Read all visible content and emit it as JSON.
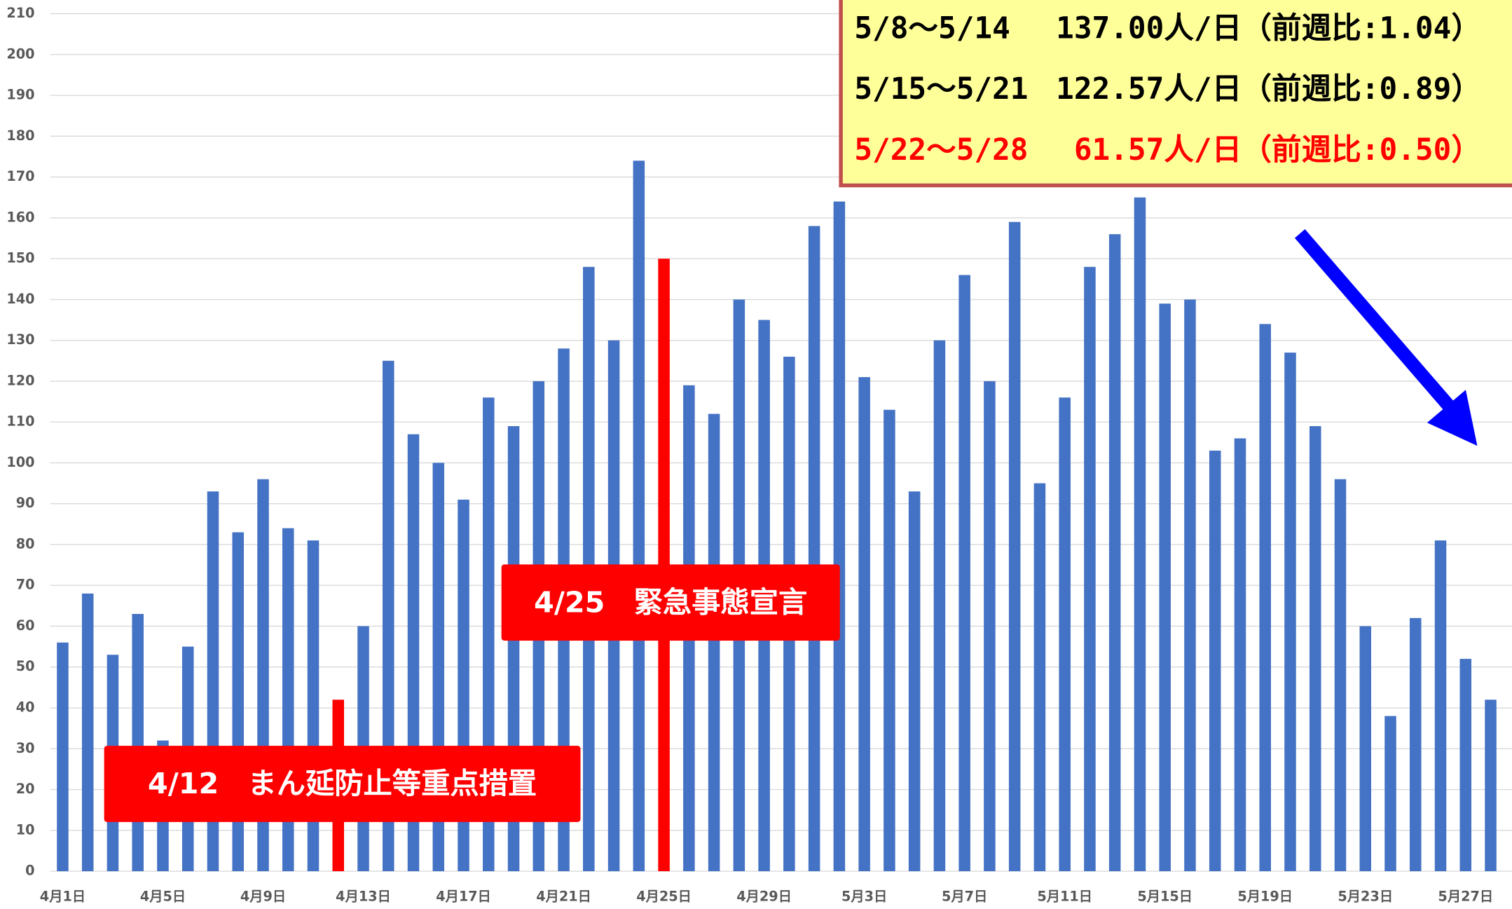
{
  "chart_data": {
    "type": "bar",
    "categories": [
      "4月1日",
      null,
      null,
      null,
      "4月5日",
      null,
      null,
      null,
      "4月9日",
      null,
      null,
      null,
      "4月13日",
      null,
      null,
      null,
      "4月17日",
      null,
      null,
      null,
      "4月21日",
      null,
      null,
      null,
      "4月25日",
      null,
      null,
      null,
      "4月29日",
      null,
      null,
      null,
      "5月3日",
      null,
      null,
      null,
      "5月7日",
      null,
      null,
      null,
      "5月11日",
      null,
      null,
      null,
      "5月15日",
      null,
      null,
      null,
      "5月19日",
      null,
      null,
      null,
      "5月23日",
      null,
      null,
      null,
      "5月27日",
      null
    ],
    "values": [
      56,
      68,
      53,
      63,
      32,
      55,
      93,
      83,
      96,
      84,
      81,
      42,
      60,
      125,
      107,
      100,
      91,
      116,
      109,
      120,
      128,
      148,
      130,
      174,
      150,
      119,
      112,
      140,
      135,
      126,
      158,
      164,
      121,
      113,
      93,
      130,
      146,
      120,
      159,
      95,
      116,
      148,
      156,
      165,
      139,
      140,
      103,
      106,
      134,
      127,
      109,
      96,
      60,
      38,
      62,
      81,
      52,
      42
    ],
    "color": "#4472c4",
    "highlights": [
      {
        "index": 11,
        "color": "#ff0000"
      },
      {
        "index": 24,
        "color": "#ff0000"
      }
    ],
    "ylim": [
      0,
      210
    ],
    "yticks": [
      0,
      10,
      20,
      30,
      40,
      50,
      60,
      70,
      80,
      90,
      100,
      110,
      120,
      130,
      140,
      150,
      160,
      170,
      180,
      190,
      200,
      210
    ],
    "grid": true,
    "annotations": [
      {
        "text": "4/12　まん延防止等重点措置",
        "index": 11
      },
      {
        "text": "4/25　緊急事態宣言",
        "index": 24
      }
    ],
    "summary": [
      {
        "period": "5/8～5/14",
        "text": "137.00人/日（前週比:1.04）",
        "color": "#000000"
      },
      {
        "period": "5/15～5/21",
        "text": "122.57人/日（前週比:0.89）",
        "color": "#000000"
      },
      {
        "period": "5/22～5/28",
        "text": "61.57人/日（前週比:0.50）",
        "color": "#ff0000"
      }
    ]
  }
}
